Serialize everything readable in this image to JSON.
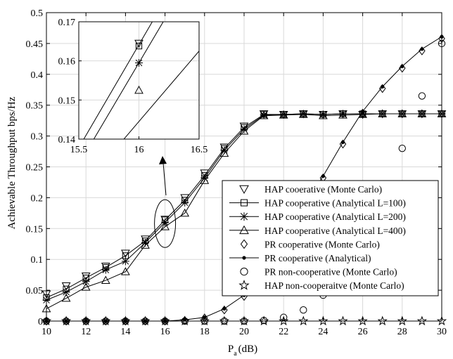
{
  "chart_data": {
    "type": "line",
    "xlabel": "P",
    "xlabel_sub": "a",
    "xlabel_unit": "(dB)",
    "ylabel": "Achievable Throughput bps/Hz",
    "xlim": [
      10,
      30
    ],
    "ylim": [
      0,
      0.5
    ],
    "xticks": [
      "10",
      "12",
      "14",
      "16",
      "18",
      "20",
      "22",
      "24",
      "26",
      "28",
      "30"
    ],
    "yticks": [
      "0",
      "0.05",
      "0.1",
      "0.15",
      "0.2",
      "0.25",
      "0.3",
      "0.35",
      "0.4",
      "0.45",
      "0.5"
    ],
    "grid": true,
    "legend_position": "bottom-right",
    "series": [
      {
        "name": "HAP cooerative (Monte Carlo)",
        "marker": "triangle-down",
        "line": false,
        "x": [
          10,
          11,
          12,
          13,
          14,
          15,
          16,
          17,
          18,
          19,
          20,
          21,
          22,
          23,
          24,
          25,
          26,
          27,
          28,
          29,
          30
        ],
        "y": [
          0.044,
          0.057,
          0.073,
          0.089,
          0.11,
          0.133,
          0.165,
          0.2,
          0.24,
          0.282,
          0.316,
          0.336,
          0.335,
          0.336,
          0.335,
          0.336,
          0.335,
          0.336,
          0.336,
          0.336,
          0.336
        ]
      },
      {
        "name": "HAP cooperative (Analytical L=100)",
        "marker": "square",
        "line": true,
        "x": [
          10,
          11,
          12,
          13,
          14,
          15,
          16,
          17,
          18,
          19,
          20,
          21,
          22,
          23,
          24,
          25,
          26,
          27,
          28,
          29,
          30
        ],
        "y": [
          0.038,
          0.052,
          0.07,
          0.087,
          0.106,
          0.13,
          0.164,
          0.196,
          0.236,
          0.28,
          0.314,
          0.335,
          0.335,
          0.336,
          0.335,
          0.336,
          0.336,
          0.336,
          0.336,
          0.336,
          0.336
        ]
      },
      {
        "name": "HAP cooperative (Analytical L=200)",
        "marker": "asterisk",
        "line": true,
        "x": [
          10,
          11,
          12,
          13,
          14,
          15,
          16,
          17,
          18,
          19,
          20,
          21,
          22,
          23,
          24,
          25,
          26,
          27,
          28,
          29,
          30
        ],
        "y": [
          0.034,
          0.047,
          0.064,
          0.083,
          0.097,
          0.127,
          0.16,
          0.192,
          0.232,
          0.277,
          0.311,
          0.334,
          0.335,
          0.336,
          0.335,
          0.336,
          0.336,
          0.336,
          0.336,
          0.336,
          0.336
        ]
      },
      {
        "name": "HAP cooperative (Analytical L=400)",
        "marker": "triangle-up",
        "line": true,
        "x": [
          10,
          11,
          12,
          13,
          14,
          15,
          16,
          17,
          18,
          19,
          20,
          21,
          22,
          23,
          24,
          25,
          26,
          27,
          28,
          29,
          30
        ],
        "y": [
          0.02,
          0.037,
          0.055,
          0.066,
          0.08,
          0.123,
          0.153,
          0.175,
          0.228,
          0.272,
          0.308,
          0.333,
          0.334,
          0.335,
          0.333,
          0.334,
          0.335,
          0.336,
          0.336,
          0.336,
          0.336
        ]
      },
      {
        "name": "PR cooperative (Monte Carlo)",
        "marker": "diamond",
        "line": false,
        "x": [
          10,
          11,
          12,
          13,
          14,
          15,
          16,
          17,
          18,
          19,
          20,
          21,
          22,
          23,
          24,
          25,
          26,
          27,
          28,
          29,
          30
        ],
        "y": [
          0,
          0,
          0,
          0,
          0,
          0,
          0,
          0.001,
          0.005,
          0.018,
          0.04,
          0.075,
          0.13,
          0.185,
          0.232,
          0.287,
          0.337,
          0.377,
          0.41,
          0.438,
          0.458
        ]
      },
      {
        "name": "PR cooperative (Analytical)",
        "marker": "dot",
        "line": true,
        "x": [
          10,
          11,
          12,
          13,
          14,
          15,
          16,
          17,
          18,
          19,
          20,
          21,
          22,
          23,
          24,
          25,
          26,
          27,
          28,
          29,
          30
        ],
        "y": [
          0,
          0,
          0,
          0,
          0,
          0,
          0,
          0.002,
          0.006,
          0.02,
          0.042,
          0.078,
          0.132,
          0.187,
          0.235,
          0.29,
          0.34,
          0.38,
          0.413,
          0.441,
          0.461
        ]
      },
      {
        "name": "PR non-cooperative (Monte Carlo)",
        "marker": "circle",
        "line": false,
        "x": [
          10,
          11,
          12,
          13,
          14,
          15,
          16,
          17,
          18,
          19,
          20,
          21,
          22,
          23,
          24,
          25,
          26,
          27,
          28,
          29,
          30
        ],
        "y": [
          0,
          0,
          0,
          0,
          0,
          0,
          0,
          0,
          0,
          0,
          0,
          0.001,
          0.006,
          0.018,
          0.042,
          0.087,
          0.14,
          0.205,
          0.28,
          0.365,
          0.45
        ]
      },
      {
        "name": "HAP non-cooperaitve (Monte Carlo)",
        "marker": "star",
        "line": false,
        "x": [
          10,
          11,
          12,
          13,
          14,
          15,
          16,
          17,
          18,
          19,
          20,
          21,
          22,
          23,
          24,
          25,
          26,
          27,
          28,
          29,
          30
        ],
        "y": [
          0,
          0,
          0,
          0,
          0,
          0,
          0,
          0,
          0,
          0,
          0,
          0,
          0,
          0,
          0,
          0,
          0,
          0,
          0,
          0,
          0
        ]
      }
    ],
    "inset": {
      "xlim": [
        15.5,
        16.5
      ],
      "ylim": [
        0.14,
        0.17
      ],
      "xticks": [
        "15.5",
        "16",
        "16.5"
      ],
      "yticks": [
        "0.14",
        "0.15",
        "0.16",
        "0.17"
      ],
      "points": [
        {
          "marker": "triangle-down",
          "x": 16,
          "y": 0.1645
        },
        {
          "marker": "square",
          "x": 16,
          "y": 0.1638
        },
        {
          "marker": "asterisk",
          "x": 16,
          "y": 0.1595
        },
        {
          "marker": "triangle-up",
          "x": 16,
          "y": 0.1525
        }
      ],
      "lines": [
        {
          "x": [
            15.5,
            16.5
          ],
          "y": [
            0.1378,
            0.1905
          ]
        },
        {
          "x": [
            15.5,
            16.5
          ],
          "y": [
            0.1335,
            0.1855
          ]
        },
        {
          "x": [
            15.5,
            16.5
          ],
          "y": [
            0.1265,
            0.1625
          ]
        }
      ]
    }
  }
}
